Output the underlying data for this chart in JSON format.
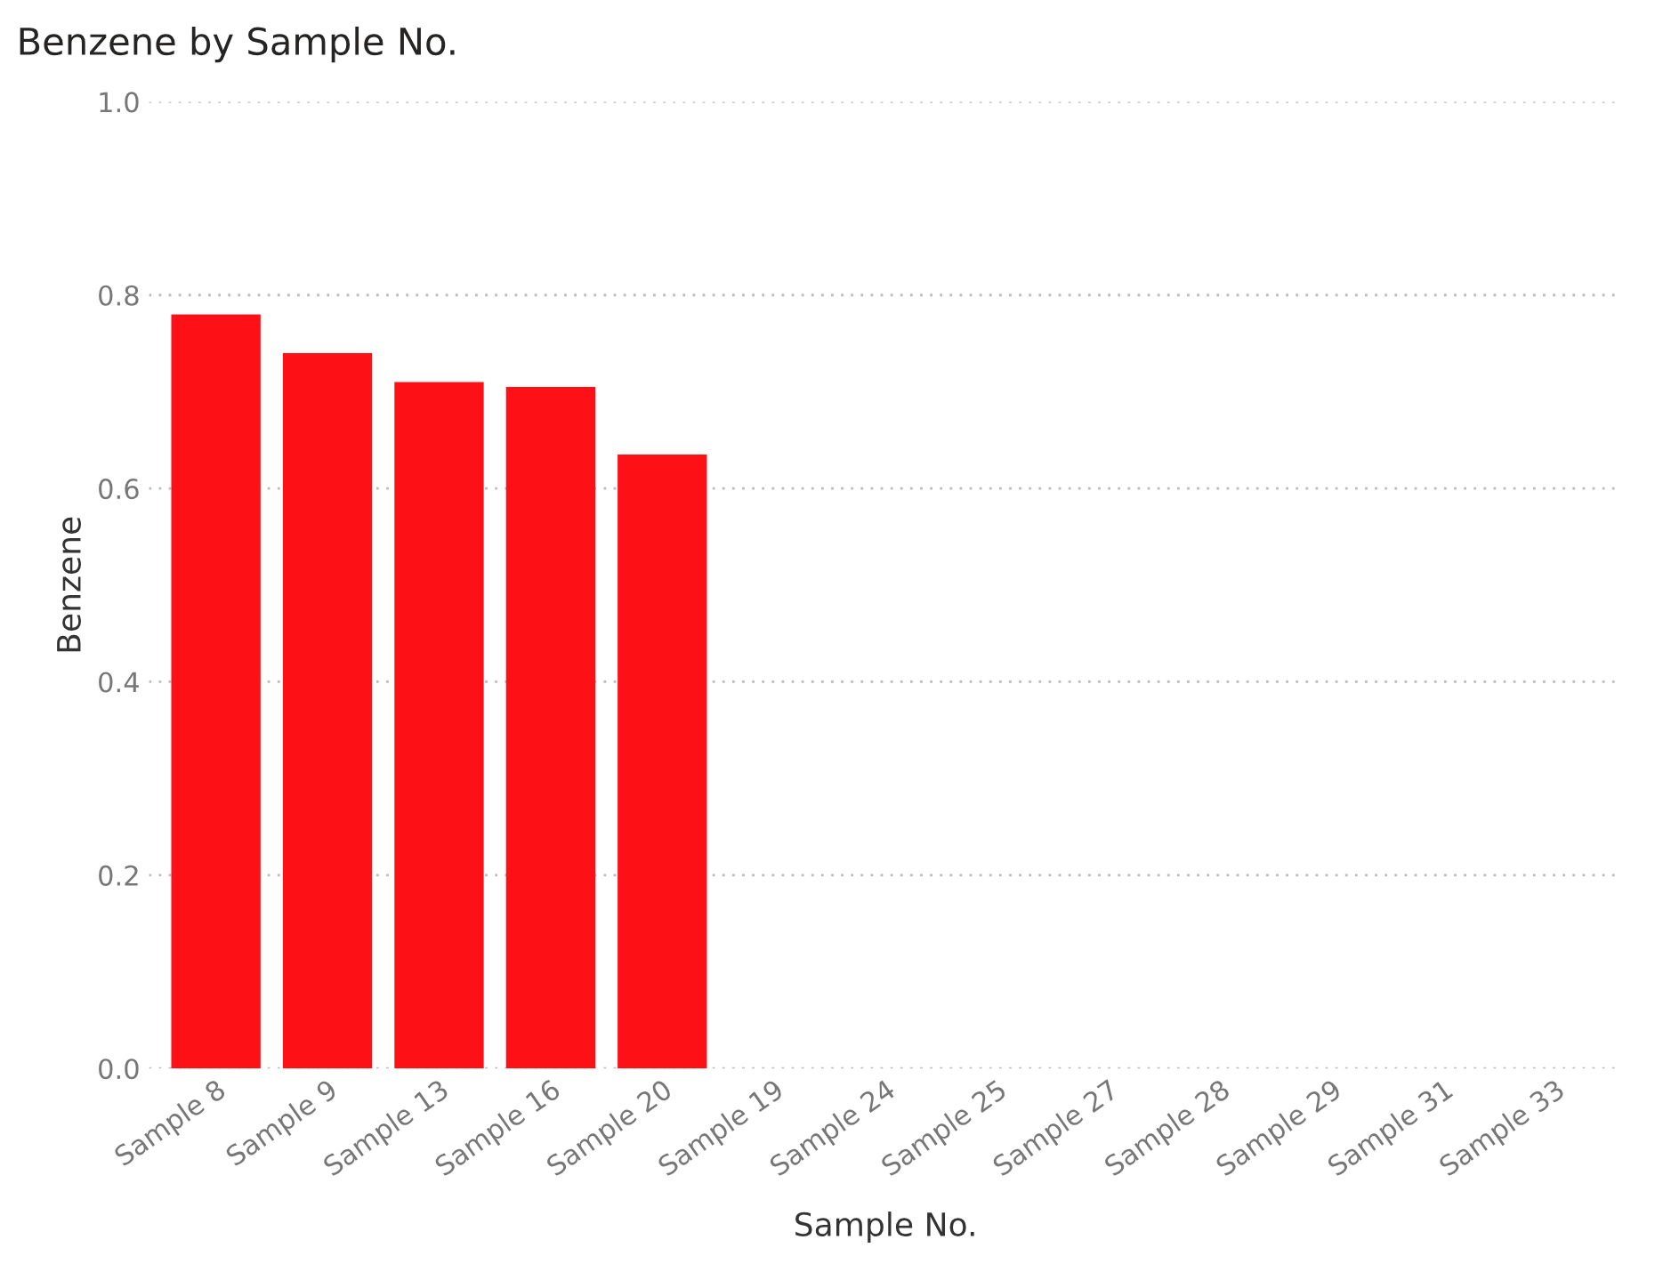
{
  "chart_data": {
    "type": "bar",
    "title": "Benzene by Sample No.",
    "xlabel": "Sample No.",
    "ylabel": "Benzene",
    "categories": [
      "Sample 8",
      "Sample 9",
      "Sample 13",
      "Sample 16",
      "Sample 20",
      "Sample 19",
      "Sample 24",
      "Sample 25",
      "Sample 27",
      "Sample 28",
      "Sample 29",
      "Sample 31",
      "Sample 33"
    ],
    "values": [
      0.78,
      0.74,
      0.71,
      0.705,
      0.635,
      null,
      null,
      null,
      null,
      null,
      null,
      null,
      null
    ],
    "color": "#fd1016",
    "ylim": [
      0,
      1
    ],
    "yticks": [
      {
        "value": 0,
        "label": "0.0"
      },
      {
        "value": 0.2,
        "label": "0.2"
      },
      {
        "value": 0.4,
        "label": "0.4"
      },
      {
        "value": 0.6,
        "label": "0.6"
      },
      {
        "value": 0.8,
        "label": "0.8"
      },
      {
        "value": 1,
        "label": "1.0"
      }
    ],
    "grid": "y"
  }
}
